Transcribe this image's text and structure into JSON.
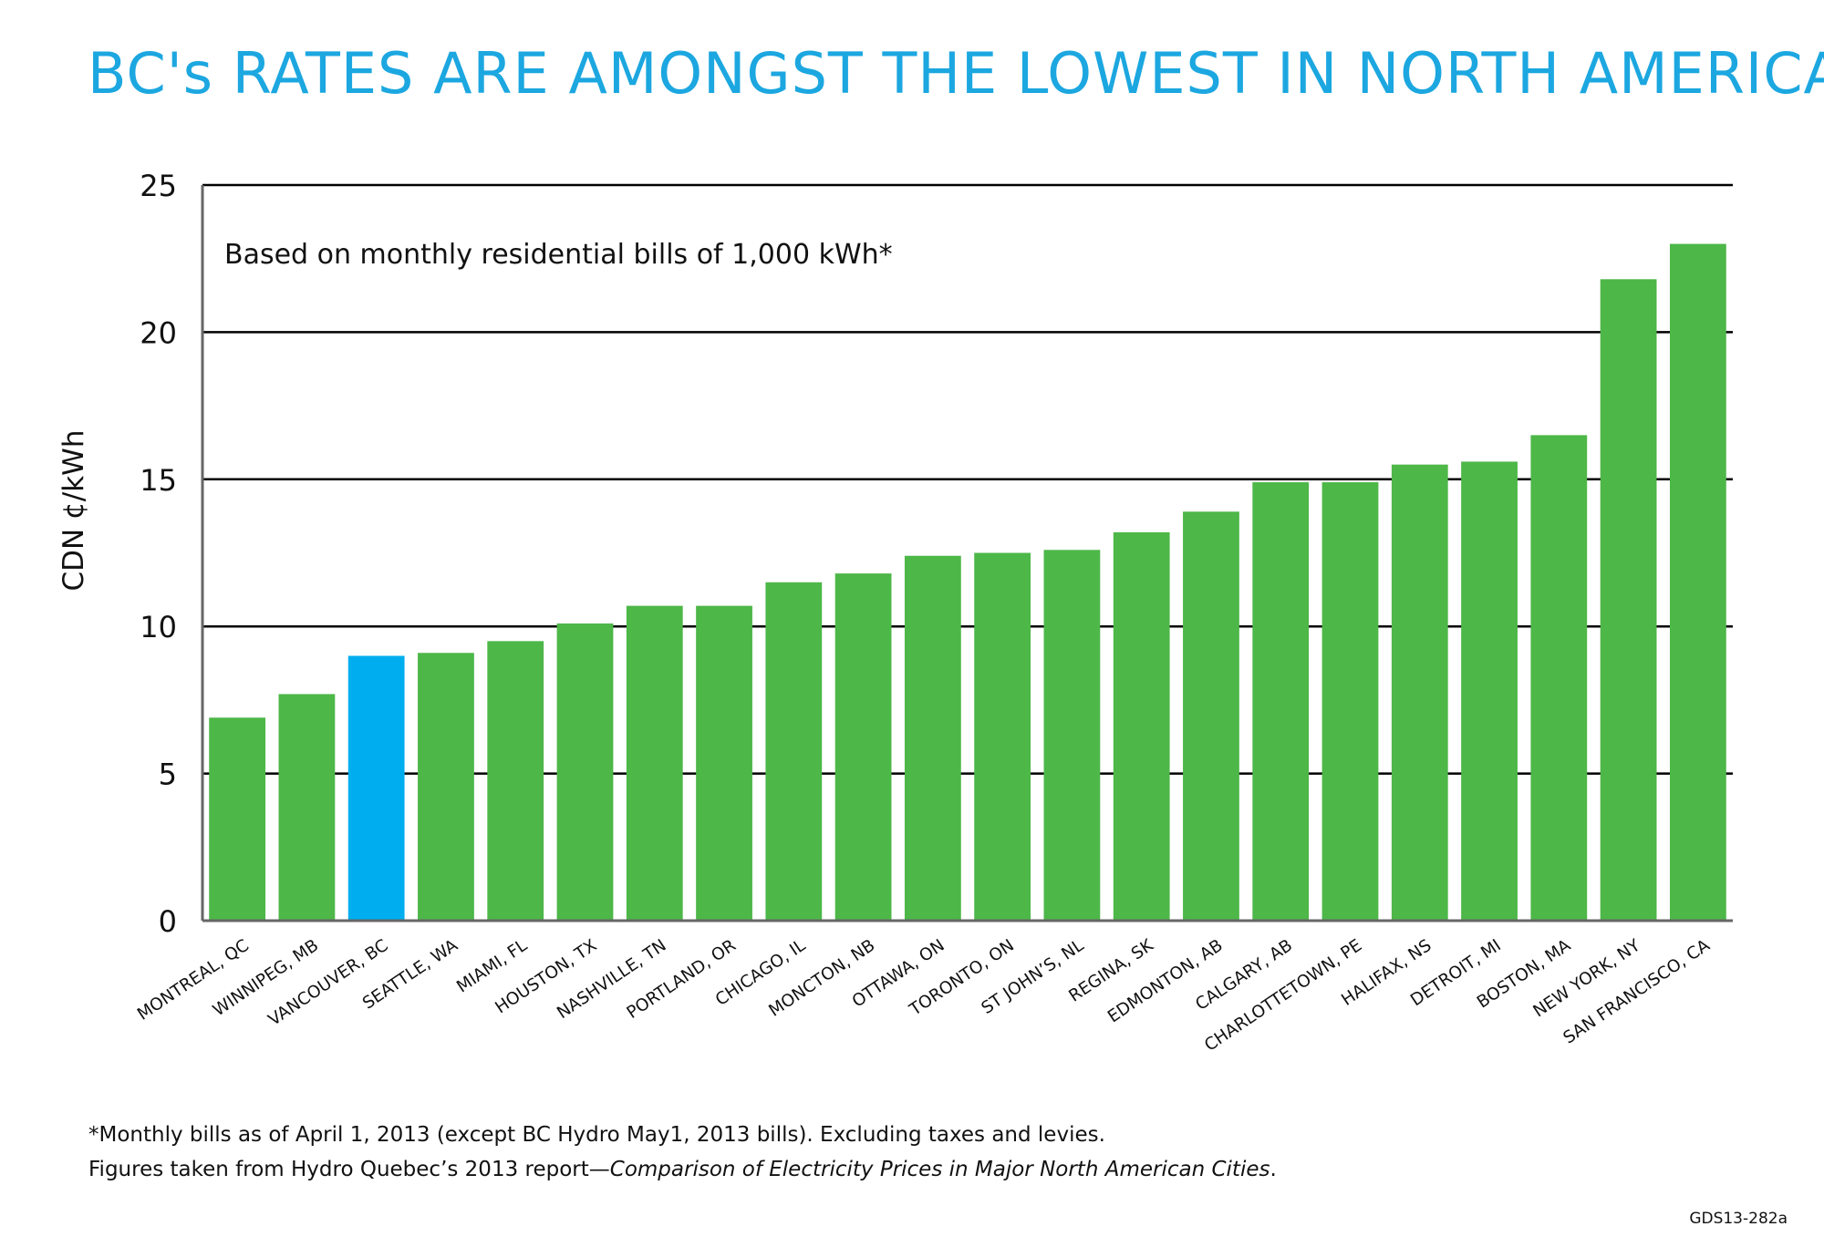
{
  "header": {
    "title": "BC's RATES ARE AMONGST THE LOWEST IN NORTH AMERICA"
  },
  "footnote": {
    "line1": "*Monthly bills as of April 1, 2013 (except BC Hydro May1, 2013 bills). Excluding taxes and levies.",
    "line2_prefix": "Figures taken from Hydro Quebec’s 2013 report—",
    "line2_italic": "Comparison of Electricity Prices in Major North American Cities",
    "line2_suffix": "."
  },
  "code": "GDS13-282a",
  "colors": {
    "title": "#1ca7e0",
    "bar": "#4db748",
    "highlight": "#00aeef",
    "grid": "#000000"
  },
  "chart_data": {
    "type": "bar",
    "title": "BC's RATES ARE AMONGST THE LOWEST IN NORTH AMERICA",
    "annotation": "Based on monthly residential bills of 1,000 kWh*",
    "xlabel": "",
    "ylabel": "CDN ¢/kWh",
    "ylim": [
      0,
      25
    ],
    "yticks": [
      0,
      5,
      10,
      15,
      20,
      25
    ],
    "grid": true,
    "highlight_category": "VANCOUVER, BC",
    "categories": [
      "MONTREAL, QC",
      "WINNIPEG, MB",
      "VANCOUVER, BC",
      "SEATTLE, WA",
      "MIAMI, FL",
      "HOUSTON, TX",
      "NASHVILLE, TN",
      "PORTLAND, OR",
      "CHICAGO, IL",
      "MONCTON, NB",
      "OTTAWA, ON",
      "TORONTO, ON",
      "ST JOHN’S, NL",
      "REGINA, SK",
      "EDMONTON, AB",
      "CALGARY, AB",
      "CHARLOTTETOWN, PE",
      "HALIFAX, NS",
      "DETROIT, MI",
      "BOSTON, MA",
      "NEW YORK, NY",
      "SAN FRANCISCO, CA"
    ],
    "values": [
      6.9,
      7.7,
      9.0,
      9.1,
      9.5,
      10.1,
      10.7,
      10.7,
      11.5,
      11.8,
      12.4,
      12.5,
      12.6,
      13.2,
      13.9,
      14.9,
      14.9,
      15.5,
      15.6,
      16.5,
      21.8,
      23.0
    ]
  }
}
